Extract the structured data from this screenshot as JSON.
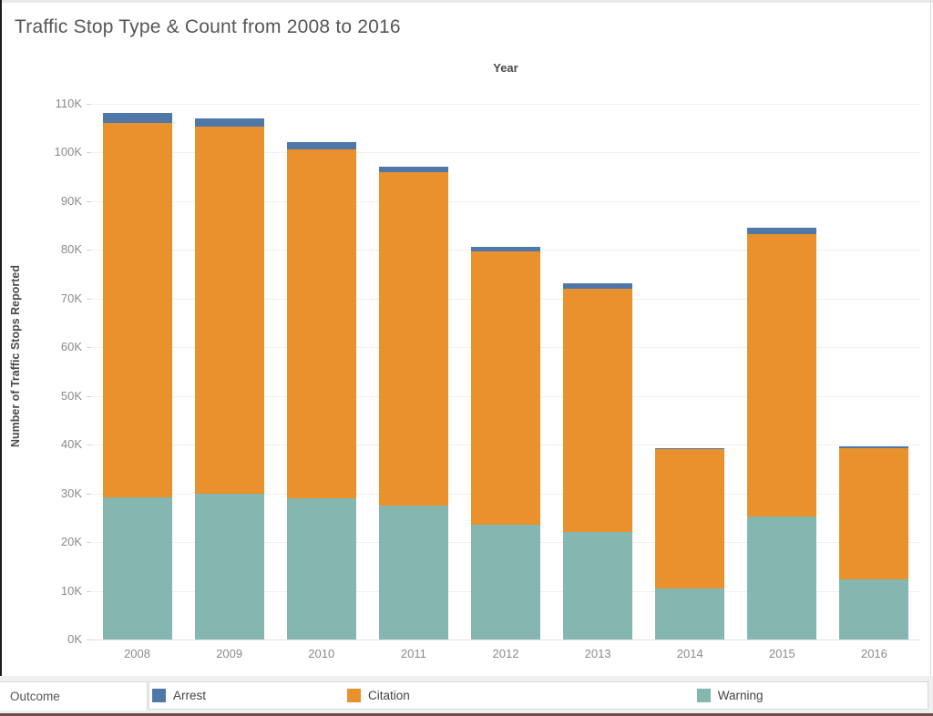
{
  "page": {
    "title": "Traffic Stop Type & Count from 2008 to 2016"
  },
  "chart_data": {
    "type": "bar",
    "stacked": true,
    "title": "Traffic Stop Type & Count from 2008 to 2016",
    "xlabel": "Year",
    "ylabel": "Number of Traffic Stops Reported",
    "categories": [
      "2008",
      "2009",
      "2010",
      "2011",
      "2012",
      "2013",
      "2014",
      "2015",
      "2016"
    ],
    "series": [
      {
        "name": "Arrest",
        "color": "#4f78a8",
        "values": [
          2000,
          1700,
          1500,
          1100,
          900,
          1000,
          200,
          1300,
          400
        ]
      },
      {
        "name": "Citation",
        "color": "#e8912d",
        "values": [
          76900,
          75300,
          71500,
          68400,
          56100,
          50000,
          28600,
          57900,
          27000
        ]
      },
      {
        "name": "Warning",
        "color": "#85b6b0",
        "values": [
          29100,
          30000,
          29000,
          27500,
          23500,
          22000,
          10500,
          25300,
          12300
        ]
      }
    ],
    "stack_totals": [
      108000,
      107000,
      102000,
      97000,
      80500,
      73000,
      39300,
      84500,
      39700
    ],
    "stack_order_bottom_to_top": [
      "Warning",
      "Citation",
      "Arrest"
    ],
    "ylim": [
      0,
      114400
    ],
    "ytick_interval": 10000,
    "ytick_labels": [
      "0K",
      "10K",
      "20K",
      "30K",
      "40K",
      "50K",
      "60K",
      "70K",
      "80K",
      "90K",
      "100K",
      "110K"
    ],
    "grid": true,
    "legend_position": "bottom"
  },
  "legend": {
    "outcome_label": "Outcome",
    "items": [
      {
        "label": "Arrest",
        "color": "#4f78a8"
      },
      {
        "label": "Citation",
        "color": "#e8912d"
      },
      {
        "label": "Warning",
        "color": "#85b6b0"
      }
    ]
  },
  "colors": {
    "arrest_blue": "#4f78a8",
    "citation_orange": "#e8912d",
    "warning_teal": "#85b6b0",
    "title_gray": "#565656",
    "tick_gray": "#8a8a8a",
    "gridline": "#f0f0f0"
  }
}
